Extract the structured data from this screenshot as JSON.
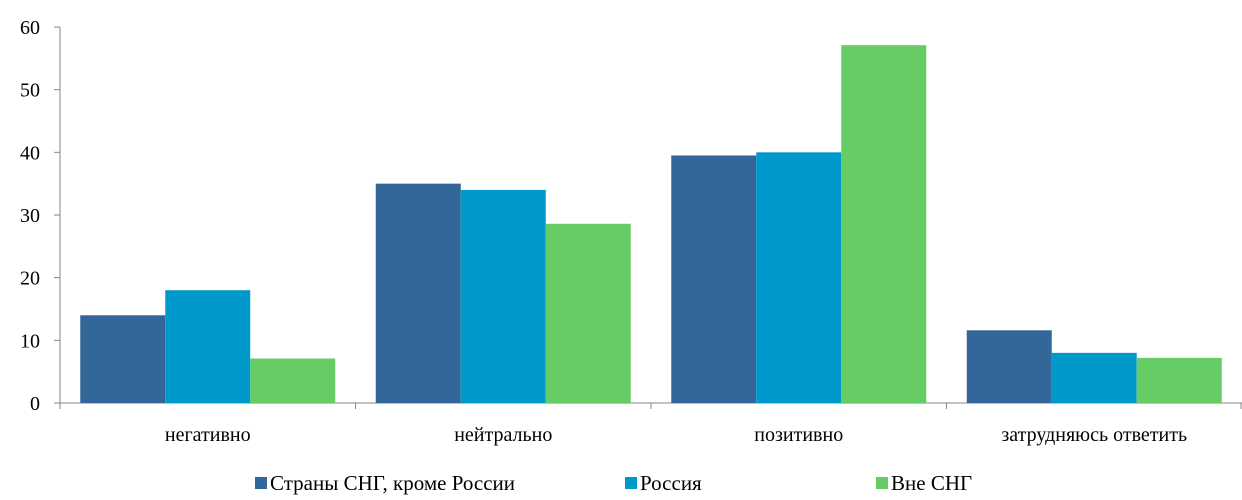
{
  "chart_data": {
    "type": "bar",
    "categories": [
      "негативно",
      "нейтрально",
      "позитивно",
      "затрудняюсь ответить"
    ],
    "series": [
      {
        "name": "Страны СНГ, кроме России",
        "color": "#336699",
        "values": [
          14,
          35,
          39.5,
          11.6
        ]
      },
      {
        "name": "Россия",
        "color": "#0099CC",
        "values": [
          18,
          34,
          40,
          8
        ]
      },
      {
        "name": "Вне СНГ",
        "color": "#66CC66",
        "values": [
          7.1,
          28.6,
          57.1,
          7.2
        ]
      }
    ],
    "ylim": [
      0,
      60
    ],
    "yticks": [
      0,
      10,
      20,
      30,
      40,
      50,
      60
    ],
    "grid": false,
    "legend": "bottom"
  }
}
